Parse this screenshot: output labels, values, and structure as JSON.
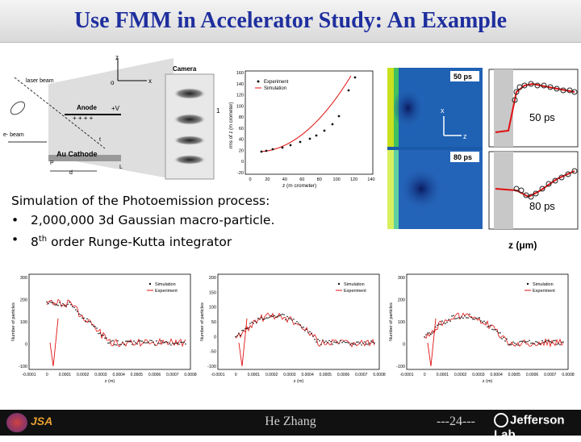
{
  "title": "Use FMM in Accelerator Study: An Example",
  "diagram": {
    "laser_beam": "laser beam",
    "anode": "Anode",
    "plus_v": "+V",
    "camera": "Camera",
    "e_beam": "e- beam",
    "cathode": "Au Cathode",
    "axis_z": "z",
    "axis_x": "x",
    "origin": "o",
    "label_p": "P",
    "label_l": "L",
    "label_d": "d",
    "label_1": "1",
    "label_t": "t"
  },
  "fit_plot": {
    "legend": [
      "Experiment",
      "Simulation"
    ],
    "xlabel": "z (m crometer)",
    "ylabel": "rms of z (m crometer)",
    "x_ticks": [
      "0",
      "20",
      "40",
      "60",
      "80",
      "100",
      "120",
      "140"
    ],
    "y_ticks": [
      "160",
      "140",
      "120",
      "100",
      "80",
      "60",
      "40",
      "20",
      "0",
      "-20"
    ]
  },
  "images": {
    "label_50": "50 ps",
    "label_80": "80 ps",
    "axis_x": "x",
    "axis_z": "z",
    "plot_50": "50 ps",
    "plot_80": "80 ps",
    "z_label": "z (μm)"
  },
  "text": {
    "heading": "Simulation of the Photoemission process:",
    "bullet1": "2,000,000 3d Gaussian macro-particle.",
    "bullet2_pre": "8",
    "bullet2_sup": "th",
    "bullet2_post": " order Runge-Kutta integrator",
    "bullet_char": "•"
  },
  "histograms": {
    "legend": [
      "Simulation",
      "Experiment"
    ],
    "ylabel": "Number of particles",
    "hist1": {
      "y_ticks": [
        "300",
        "200",
        "100",
        "0",
        "-100"
      ],
      "x_ticks": [
        "-0.0001",
        "0",
        "0.0001",
        "0.0002",
        "0.0003",
        "0.0004",
        "0.0005",
        "0.0006",
        "0.0007",
        "0.0008"
      ],
      "xlabel": "z (m)"
    },
    "hist2": {
      "y_ticks": [
        "200",
        "150",
        "100",
        "50",
        "0",
        "-50",
        "-100"
      ],
      "x_ticks": [
        "-0.0001",
        "0",
        "0.0001",
        "0.0002",
        "0.0003",
        "0.0004",
        "0.0005",
        "0.0006",
        "0.0007",
        "0.0008"
      ],
      "xlabel": "z (m)"
    },
    "hist3": {
      "y_ticks": [
        "300",
        "200",
        "100",
        "0",
        "-100"
      ],
      "x_ticks": [
        "-0.0001",
        "0",
        "0.0001",
        "0.0002",
        "0.0003",
        "0.0004",
        "0.0005",
        "0.0006",
        "0.0007",
        "0.0008"
      ],
      "xlabel": "z (m)"
    }
  },
  "footer": {
    "name": "He Zhang",
    "page": "---24---",
    "logo": "Jefferson Lab",
    "jsa": "JSA"
  },
  "colors": {
    "title": "#1f2f9e",
    "simulation": "#e01010",
    "experiment": "#111111"
  }
}
